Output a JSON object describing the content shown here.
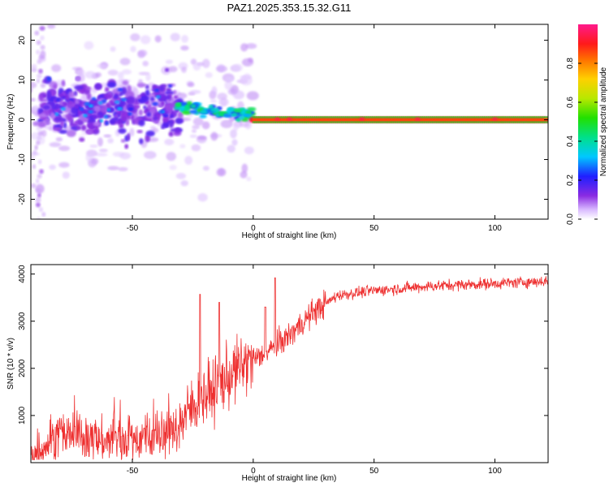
{
  "figure_title": "PAZ1.2025.353.15.32.G11",
  "chart_data": [
    {
      "type": "heatmap",
      "xlabel": "Height of straight line (km)",
      "ylabel": "Frequency (Hz)",
      "xlim": [
        -92,
        122
      ],
      "ylim": [
        -25,
        24
      ],
      "xticks": [
        -50,
        0,
        50,
        100
      ],
      "yticks": [
        -20,
        -10,
        0,
        10,
        20
      ],
      "colorbar": {
        "label": "Normalized spectral amplitude",
        "range": [
          0,
          1
        ],
        "ticks": [
          0.0,
          0.2,
          0.4,
          0.6,
          0.8
        ],
        "tick_labels": [
          "0.0",
          "0.2",
          "0.4",
          "0.6",
          "0.8"
        ]
      },
      "description_regions": [
        {
          "x_range": [
            -92,
            -30
          ],
          "freq_center": 3,
          "freq_spread": 10,
          "amplitude": 0.15
        },
        {
          "x_range": [
            -30,
            0
          ],
          "freq_center": 1.5,
          "freq_spread": 2,
          "amplitude": 0.45
        },
        {
          "x_range": [
            0,
            122
          ],
          "freq_center": 0,
          "freq_spread": 1,
          "amplitude": 0.85
        }
      ]
    },
    {
      "type": "line",
      "xlabel": "Height of straight line (km)",
      "ylabel": "SNR (10 * v/v)",
      "xlim": [
        -92,
        122
      ],
      "ylim": [
        0,
        4200
      ],
      "xticks": [
        -50,
        0,
        50,
        100
      ],
      "yticks": [
        1000,
        2000,
        3000,
        4000
      ],
      "series": [
        {
          "name": "SNR",
          "color": "#ee3030",
          "trend_x": [
            -92,
            -80,
            -60,
            -40,
            -32,
            -25,
            -15,
            -5,
            5,
            15,
            25,
            35,
            50,
            75,
            100,
            122
          ],
          "trend_y": [
            150,
            600,
            450,
            550,
            700,
            1200,
            1600,
            2050,
            2300,
            2700,
            3200,
            3550,
            3650,
            3750,
            3800,
            3850
          ],
          "peaks": [
            {
              "x": -22,
              "y": 3570
            },
            {
              "x": -14,
              "y": 3400
            },
            {
              "x": 9,
              "y": 3920
            },
            {
              "x": 5,
              "y": 3300
            }
          ]
        }
      ]
    }
  ]
}
